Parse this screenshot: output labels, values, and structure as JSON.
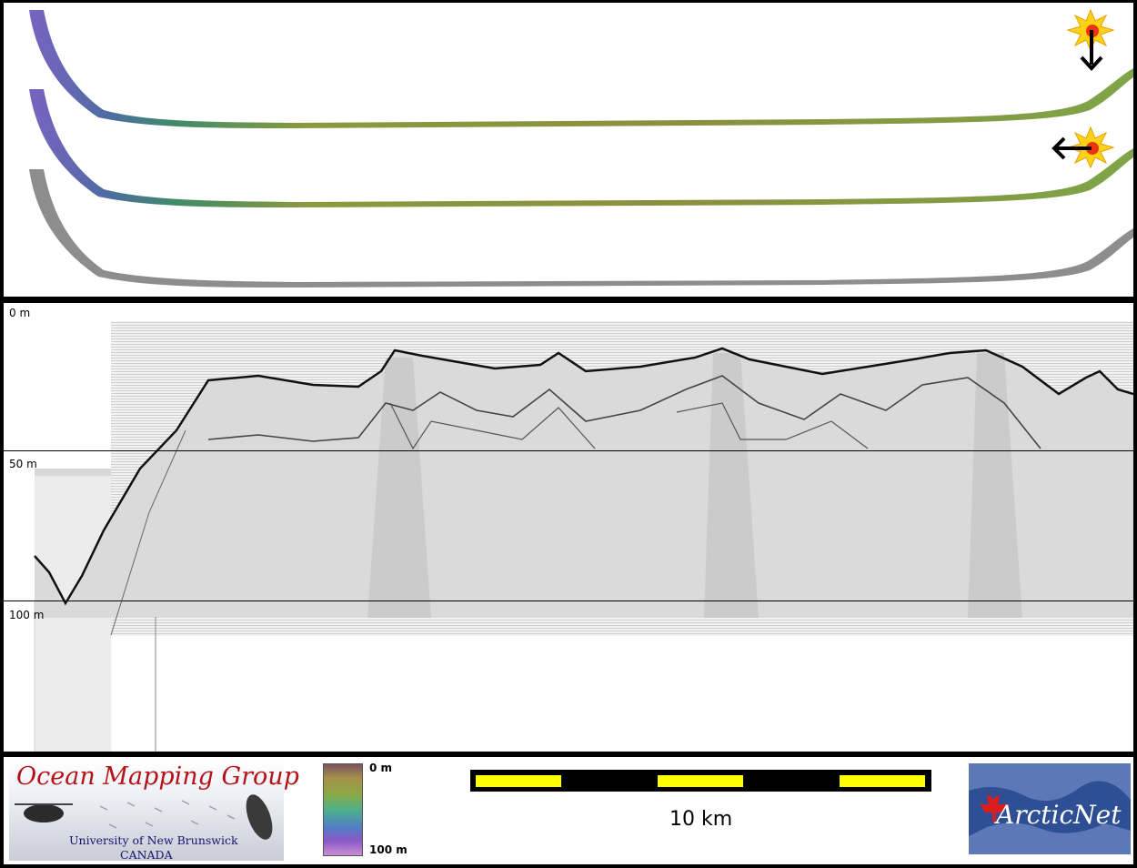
{
  "depth_scale": {
    "label_0": "0 m",
    "label_50": "50 m",
    "label_100": "100 m"
  },
  "legend": {
    "colorbar_top": "0 m",
    "colorbar_bottom": "100 m"
  },
  "scale": {
    "label": "10 km"
  },
  "logos": {
    "omg_title": "Ocean Mapping Group",
    "omg_university": "University of New Brunswick",
    "omg_country": "CANADA",
    "arcticnet_text": "ArcticNet"
  },
  "illumination_icons": [
    {
      "name": "sun-icon",
      "arrow": "down"
    },
    {
      "name": "sun-icon",
      "arrow": "left"
    }
  ],
  "colors": {
    "frame": "#000000",
    "scale_fill": "#ffff00",
    "omg_title": "#b51218",
    "omg_text": "#13136e",
    "arcticnet_bg": "#2f4f95",
    "maple_leaf": "#e01b1b"
  }
}
